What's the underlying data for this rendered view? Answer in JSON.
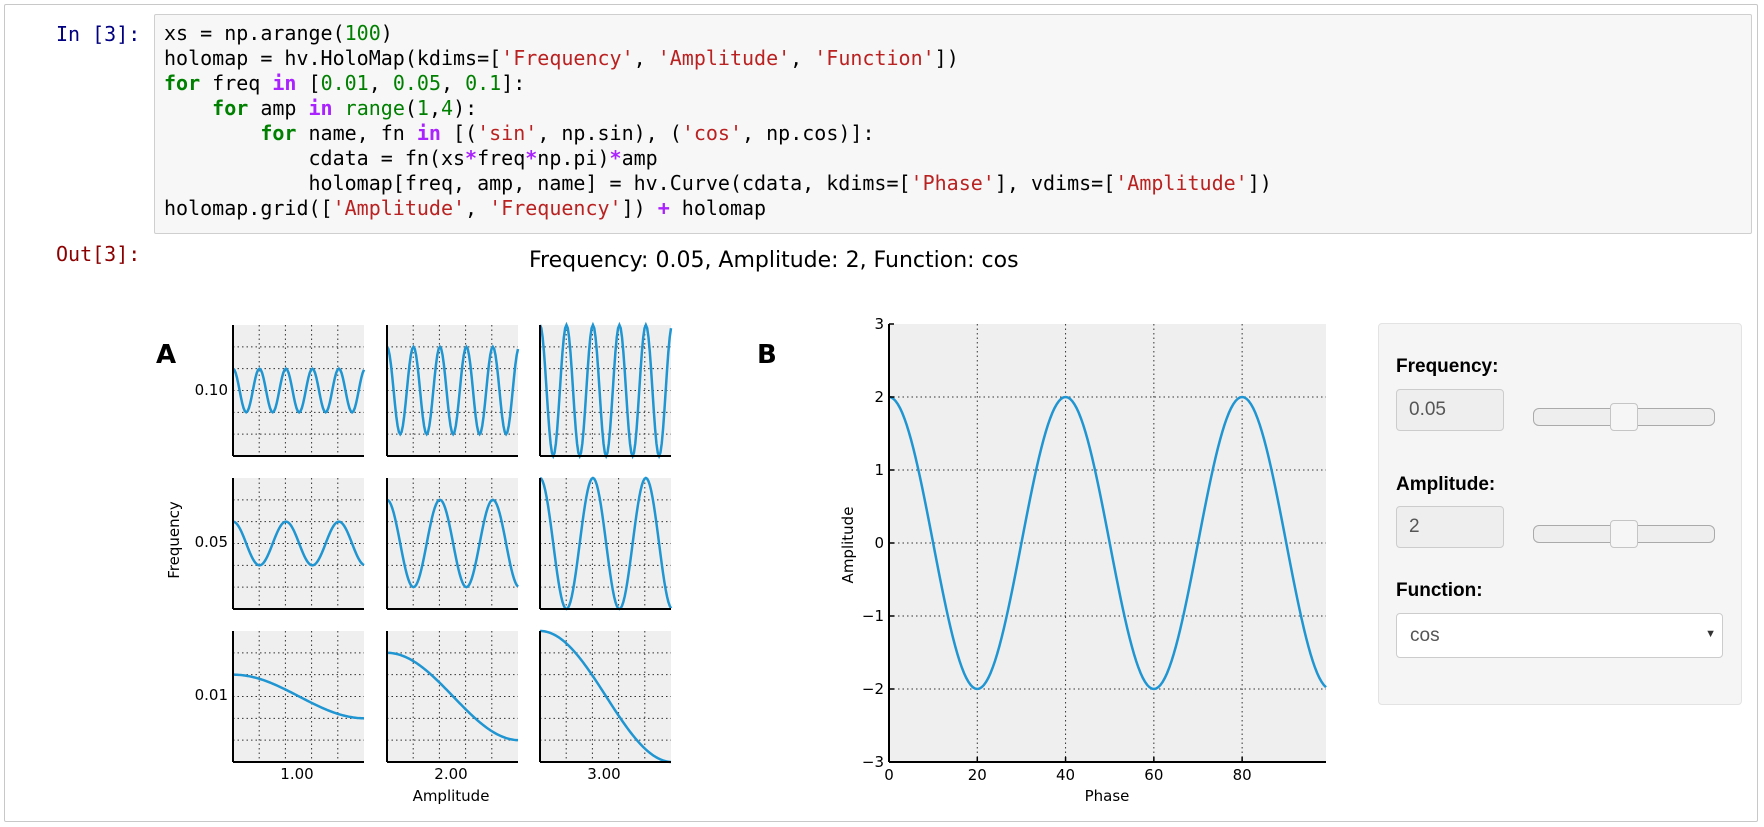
{
  "prompts": {
    "in": "In [3]:",
    "out": "Out[3]:"
  },
  "code_lines": [
    "xs = np.arange(100)",
    "holomap = hv.HoloMap(kdims=['Frequency', 'Amplitude', 'Function'])",
    "for freq in [0.01, 0.05, 0.1]:",
    "    for amp in range(1,4):",
    "        for name, fn in [('sin', np.sin), ('cos', np.cos)]:",
    "            cdata = fn(xs*freq*np.pi)*amp",
    "            holomap[freq, amp, name] = hv.Curve(cdata, kdims=['Phase'], vdims=['Amplitude'])",
    "holomap.grid(['Amplitude', 'Frequency']) + holomap"
  ],
  "output": {
    "title": "Frequency: 0.05, Amplitude: 2, Function: cos"
  },
  "panel_a": {
    "label": "A",
    "xlabel": "Amplitude",
    "ylabel": "Frequency",
    "x_ticks": [
      "1.00",
      "2.00",
      "3.00"
    ],
    "y_ticks": [
      "0.10",
      "0.05",
      "0.01"
    ]
  },
  "panel_b": {
    "label": "B",
    "xlabel": "Phase",
    "ylabel": "Amplitude",
    "x_ticks": [
      "0",
      "20",
      "40",
      "60",
      "80"
    ],
    "y_ticks": [
      "3",
      "2",
      "1",
      "0",
      "−1",
      "−2",
      "−3"
    ]
  },
  "chart_data": [
    {
      "type": "line",
      "title": "",
      "note": "3x3 grid of small curves",
      "xlabel": "Amplitude",
      "ylabel": "Frequency",
      "columns_amplitude": [
        1,
        2,
        3
      ],
      "rows_frequency": [
        0.1,
        0.05,
        0.01
      ],
      "function": "cos",
      "x": "Phase 0..99",
      "cells": [
        {
          "frequency": 0.1,
          "amplitude": 1
        },
        {
          "frequency": 0.1,
          "amplitude": 2
        },
        {
          "frequency": 0.1,
          "amplitude": 3
        },
        {
          "frequency": 0.05,
          "amplitude": 1
        },
        {
          "frequency": 0.05,
          "amplitude": 2
        },
        {
          "frequency": 0.05,
          "amplitude": 3
        },
        {
          "frequency": 0.01,
          "amplitude": 1
        },
        {
          "frequency": 0.01,
          "amplitude": 2
        },
        {
          "frequency": 0.01,
          "amplitude": 3
        }
      ],
      "ylim": [
        -3,
        3
      ],
      "grid": true
    },
    {
      "type": "line",
      "title": "Frequency: 0.05, Amplitude: 2, Function: cos",
      "xlabel": "Phase",
      "ylabel": "Amplitude",
      "series": [
        {
          "x": [
            0,
            5,
            10,
            15,
            20,
            25,
            30,
            35,
            40,
            45,
            50,
            55,
            60,
            65,
            70,
            75,
            80,
            85,
            90,
            95,
            99
          ],
          "values": [
            2,
            1.41,
            0,
            -1.41,
            -2,
            -1.41,
            0,
            1.41,
            2,
            1.41,
            0,
            -1.41,
            -2,
            -1.41,
            0,
            1.41,
            2,
            1.41,
            0,
            -1.41,
            -1.97
          ]
        }
      ],
      "xlim": [
        0,
        99
      ],
      "ylim": [
        -3,
        3
      ],
      "grid": true,
      "line_color": "#1f95d1"
    }
  ],
  "widgets": {
    "frequency": {
      "label": "Frequency:",
      "value": "0.05",
      "slider_fraction": 0.5
    },
    "amplitude": {
      "label": "Amplitude:",
      "value": "2",
      "slider_fraction": 0.5
    },
    "function": {
      "label": "Function:",
      "value": "cos"
    }
  },
  "colors": {
    "curve": "#1f95d1",
    "plot_bg": "#efefef",
    "prompt_in": "#000080",
    "prompt_out": "#8b0000"
  }
}
